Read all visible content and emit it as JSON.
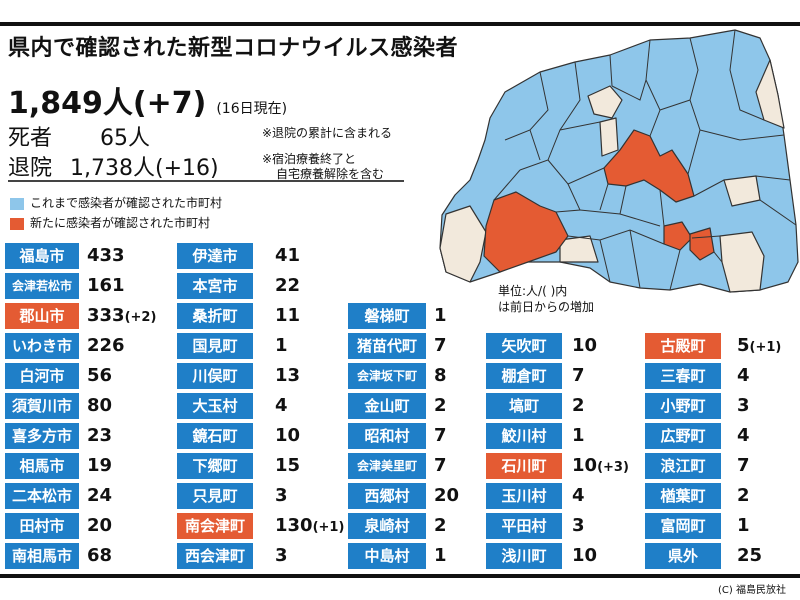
{
  "title": "県内で確認された新型コロナウイルス感染者",
  "total": "1,849人(+7)",
  "as_of": "(16日現在)",
  "deaths": {
    "label": "死者",
    "value": "65人"
  },
  "recovered": {
    "label": "退院",
    "value": "1,738人(+16)"
  },
  "notes": [
    "※退院の累計に含まれる",
    "※宿泊療養終了と",
    "自宅療養解除を含む"
  ],
  "legend": [
    {
      "label": "これまで感染者が確認された市町村",
      "color": "#8ec6ea"
    },
    {
      "label": "新たに感染者が確認された市町村",
      "color": "#e45b33"
    }
  ],
  "unit_note": [
    "単位:人/( )内",
    "は前日からの増加"
  ],
  "colors": {
    "blue_badge": "#1f7fc8",
    "red_badge": "#e45b33",
    "map_blue": "#8ec6ea",
    "map_orange": "#e45b33",
    "map_beige": "#f2e9dc"
  },
  "columns": [
    [
      {
        "name": "福島市",
        "count": "433",
        "new": false
      },
      {
        "name": "会津若松市",
        "count": "161",
        "new": false
      },
      {
        "name": "郡山市",
        "count": "333",
        "inc": "(+2)",
        "new": true
      },
      {
        "name": "いわき市",
        "count": "226",
        "new": false
      },
      {
        "name": "白河市",
        "count": "56",
        "new": false
      },
      {
        "name": "須賀川市",
        "count": "80",
        "new": false
      },
      {
        "name": "喜多方市",
        "count": "23",
        "new": false
      },
      {
        "name": "相馬市",
        "count": "19",
        "new": false
      },
      {
        "name": "二本松市",
        "count": "24",
        "new": false
      },
      {
        "name": "田村市",
        "count": "20",
        "new": false
      },
      {
        "name": "南相馬市",
        "count": "68",
        "new": false
      }
    ],
    [
      {
        "name": "伊達市",
        "count": "41",
        "new": false
      },
      {
        "name": "本宮市",
        "count": "22",
        "new": false
      },
      {
        "name": "桑折町",
        "count": "11",
        "new": false
      },
      {
        "name": "国見町",
        "count": "1",
        "new": false
      },
      {
        "name": "川俣町",
        "count": "13",
        "new": false
      },
      {
        "name": "大玉村",
        "count": "4",
        "new": false
      },
      {
        "name": "鏡石町",
        "count": "10",
        "new": false
      },
      {
        "name": "下郷町",
        "count": "15",
        "new": false
      },
      {
        "name": "只見町",
        "count": "3",
        "new": false
      },
      {
        "name": "南会津町",
        "count": "130",
        "inc": "(+1)",
        "new": true
      },
      {
        "name": "西会津町",
        "count": "3",
        "new": false
      }
    ],
    [
      {
        "name": "磐梯町",
        "count": "1",
        "new": false
      },
      {
        "name": "猪苗代町",
        "count": "7",
        "new": false
      },
      {
        "name": "会津坂下町",
        "count": "8",
        "new": false
      },
      {
        "name": "金山町",
        "count": "2",
        "new": false
      },
      {
        "name": "昭和村",
        "count": "7",
        "new": false
      },
      {
        "name": "会津美里町",
        "count": "7",
        "new": false
      },
      {
        "name": "西郷村",
        "count": "20",
        "new": false
      },
      {
        "name": "泉崎村",
        "count": "2",
        "new": false
      },
      {
        "name": "中島村",
        "count": "1",
        "new": false
      }
    ],
    [
      {
        "name": "矢吹町",
        "count": "10",
        "new": false
      },
      {
        "name": "棚倉町",
        "count": "7",
        "new": false
      },
      {
        "name": "塙町",
        "count": "2",
        "new": false
      },
      {
        "name": "鮫川村",
        "count": "1",
        "new": false
      },
      {
        "name": "石川町",
        "count": "10",
        "inc": "(+3)",
        "new": true
      },
      {
        "name": "玉川村",
        "count": "4",
        "new": false
      },
      {
        "name": "平田村",
        "count": "3",
        "new": false
      },
      {
        "name": "浅川町",
        "count": "10",
        "new": false
      }
    ],
    [
      {
        "name": "古殿町",
        "count": "5",
        "inc": "(+1)",
        "new": true
      },
      {
        "name": "三春町",
        "count": "4",
        "new": false
      },
      {
        "name": "小野町",
        "count": "3",
        "new": false
      },
      {
        "name": "広野町",
        "count": "4",
        "new": false
      },
      {
        "name": "浪江町",
        "count": "7",
        "new": false
      },
      {
        "name": "楢葉町",
        "count": "2",
        "new": false
      },
      {
        "name": "富岡町",
        "count": "1",
        "new": false
      },
      {
        "name": "県外",
        "count": "25",
        "new": false
      }
    ]
  ],
  "copyright": "(C) 福島民放社"
}
